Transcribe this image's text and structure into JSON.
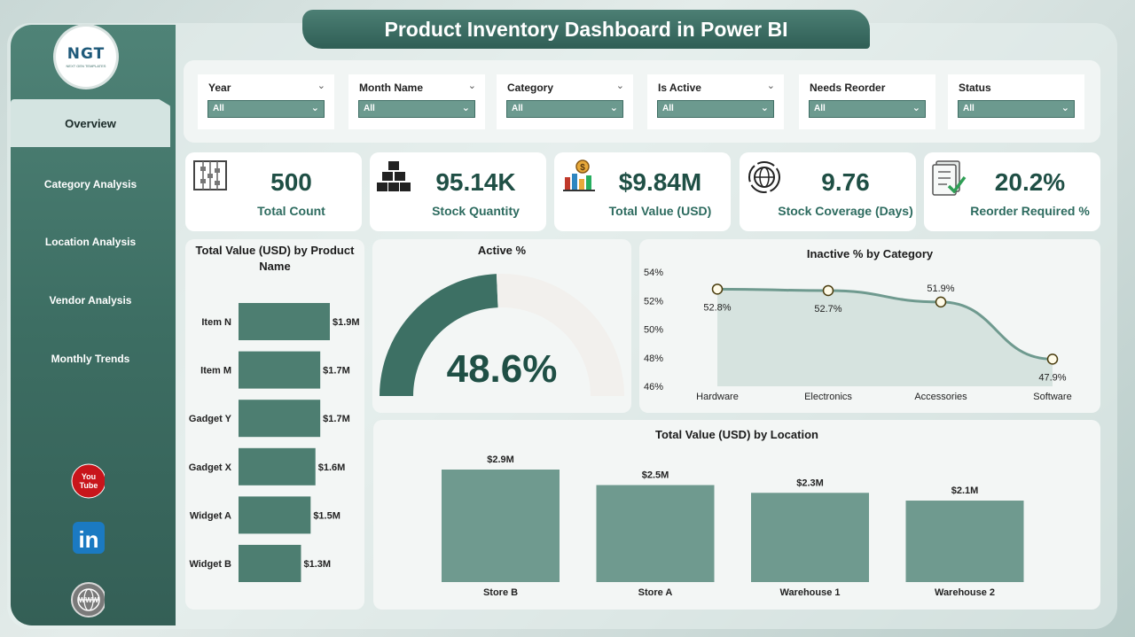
{
  "title": "Product Inventory Dashboard in Power BI",
  "logo": {
    "text": "NGT",
    "subtext": "NEXT GEN TEMPLATES"
  },
  "nav": [
    {
      "label": "Overview",
      "active": true
    },
    {
      "label": "Category Analysis",
      "active": false
    },
    {
      "label": "Location Analysis",
      "active": false
    },
    {
      "label": "Vendor Analysis",
      "active": false
    },
    {
      "label": "Monthly Trends",
      "active": false
    }
  ],
  "social": [
    {
      "icon": "youtube-icon",
      "text": "You Tube"
    },
    {
      "icon": "linkedin-icon",
      "text": "in"
    },
    {
      "icon": "website-icon",
      "text": "WWW"
    }
  ],
  "filters": [
    {
      "label": "Year",
      "value": "All"
    },
    {
      "label": "Month Name",
      "value": "All"
    },
    {
      "label": "Category",
      "value": "All"
    },
    {
      "label": "Is Active",
      "value": "All"
    },
    {
      "label": "Needs Reorder",
      "value": "All"
    },
    {
      "label": "Status",
      "value": "All"
    }
  ],
  "kpis": [
    {
      "value": "500",
      "label": "Total Count",
      "icon": "abacus-icon"
    },
    {
      "value": "95.14K",
      "label": "Stock Quantity",
      "icon": "boxes-icon"
    },
    {
      "value": "$9.84M",
      "label": "Total Value (USD)",
      "icon": "money-chart-icon"
    },
    {
      "value": "9.76",
      "label": "Stock Coverage (Days)",
      "icon": "globe-cycle-icon"
    },
    {
      "value": "20.2%",
      "label": "Reorder Required %",
      "icon": "checklist-icon"
    }
  ],
  "colors": {
    "accent": "#3d7064",
    "bar": "#4d7e71",
    "bar_light": "#6f9a8f",
    "gauge_rest": "#f2f0ed"
  },
  "chart_data": [
    {
      "type": "bar",
      "orientation": "horizontal",
      "title": "Total Value (USD) by Product Name",
      "categories": [
        "Item N",
        "Item M",
        "Gadget Y",
        "Gadget X",
        "Widget A",
        "Widget B"
      ],
      "values": [
        1.9,
        1.7,
        1.7,
        1.6,
        1.5,
        1.3
      ],
      "labels": [
        "$1.9M",
        "$1.7M",
        "$1.7M",
        "$1.6M",
        "$1.5M",
        "$1.3M"
      ],
      "unit": "M USD"
    },
    {
      "type": "gauge",
      "title": "Active %",
      "value": 48.6,
      "max": 100,
      "label": "48.6%"
    },
    {
      "type": "area",
      "title": "Inactive % by Category",
      "categories": [
        "Hardware",
        "Electronics",
        "Accessories",
        "Software"
      ],
      "values": [
        52.8,
        52.7,
        51.9,
        47.9
      ],
      "labels": [
        "52.8%",
        "52.7%",
        "51.9%",
        "47.9%"
      ],
      "yticks": [
        "54%",
        "52%",
        "50%",
        "48%",
        "46%"
      ],
      "ylim": [
        46,
        54
      ]
    },
    {
      "type": "bar",
      "orientation": "vertical",
      "title": "Total Value (USD) by Location",
      "categories": [
        "Store B",
        "Store A",
        "Warehouse 1",
        "Warehouse 2"
      ],
      "values": [
        2.9,
        2.5,
        2.3,
        2.1
      ],
      "labels": [
        "$2.9M",
        "$2.5M",
        "$2.3M",
        "$2.1M"
      ],
      "unit": "M USD"
    }
  ]
}
